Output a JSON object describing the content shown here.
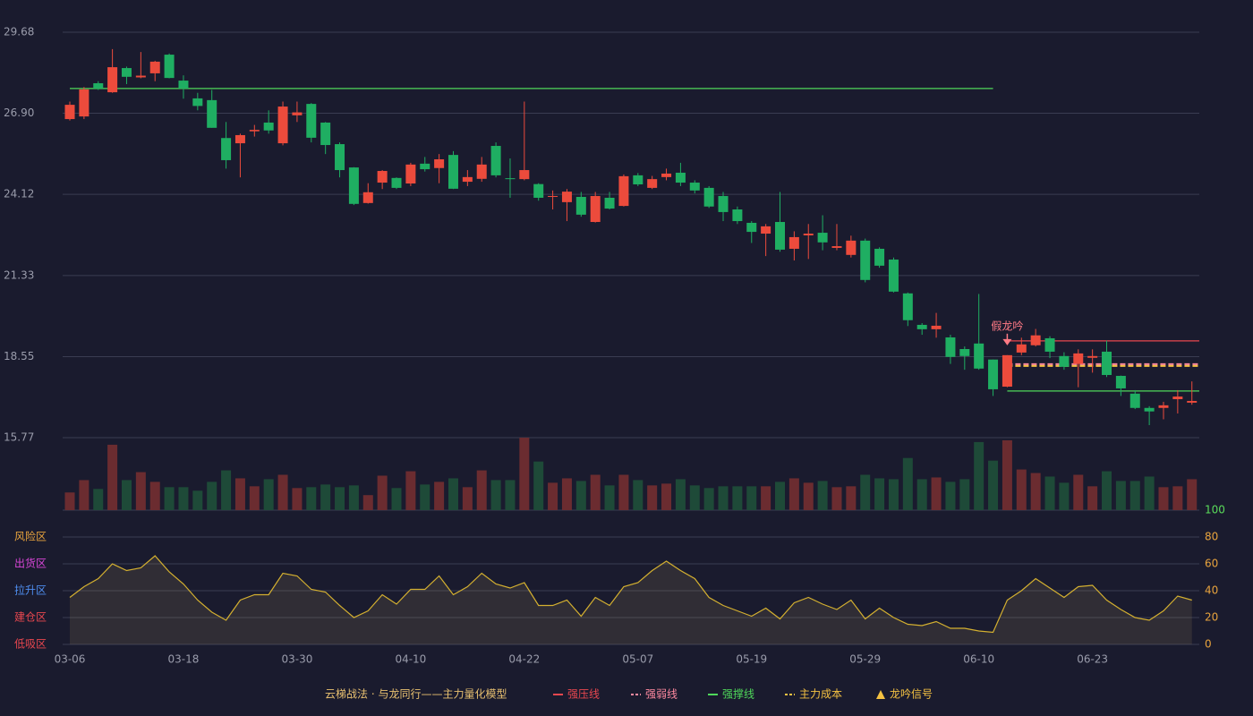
{
  "chart_data": {
    "type": "candlestick",
    "categories": [
      "03-06",
      null,
      null,
      null,
      null,
      null,
      null,
      null,
      "03-18",
      null,
      null,
      null,
      null,
      null,
      null,
      null,
      "03-30",
      null,
      null,
      null,
      null,
      null,
      null,
      null,
      "04-10",
      null,
      null,
      null,
      null,
      null,
      null,
      null,
      "04-22",
      null,
      null,
      null,
      null,
      null,
      null,
      null,
      "05-07",
      null,
      null,
      null,
      null,
      null,
      null,
      null,
      "05-19",
      null,
      null,
      null,
      null,
      null,
      null,
      null,
      "05-29",
      null,
      null,
      null,
      null,
      null,
      null,
      null,
      "06-10",
      null,
      null,
      null,
      null,
      null,
      null,
      null,
      "06-23",
      null,
      null,
      null,
      null,
      null,
      null,
      null
    ],
    "open": [
      26.7,
      26.79,
      27.93,
      27.62,
      28.45,
      28.13,
      28.27,
      28.91,
      28.02,
      27.41,
      27.35,
      26.05,
      25.87,
      26.28,
      26.58,
      25.87,
      26.83,
      27.22,
      26.58,
      25.84,
      25.04,
      23.82,
      24.52,
      24.68,
      24.49,
      25.17,
      25.02,
      25.47,
      24.55,
      24.65,
      25.78,
      24.67,
      24.64,
      24.47,
      24.03,
      23.85,
      24.03,
      23.17,
      24.0,
      23.72,
      24.77,
      24.34,
      24.71,
      24.86,
      24.52,
      24.34,
      24.06,
      23.6,
      23.14,
      22.77,
      23.17,
      22.25,
      22.71,
      22.8,
      22.28,
      22.04,
      22.53,
      22.25,
      21.88,
      20.72,
      19.64,
      19.49,
      19.21,
      18.81,
      19.0,
      18.45,
      17.52,
      18.69,
      18.94,
      19.18,
      18.57,
      18.3,
      18.51,
      18.72,
      17.89,
      17.28,
      16.79,
      16.79,
      17.09,
      16.97
    ],
    "close": [
      27.19,
      27.72,
      27.75,
      28.48,
      28.15,
      28.19,
      28.67,
      28.11,
      27.75,
      27.15,
      26.4,
      25.29,
      26.15,
      26.33,
      26.31,
      27.13,
      26.93,
      26.06,
      25.81,
      24.95,
      23.79,
      24.19,
      24.92,
      24.34,
      25.14,
      24.98,
      25.32,
      24.31,
      24.71,
      25.14,
      24.77,
      24.64,
      24.95,
      24.0,
      24.06,
      24.21,
      23.42,
      24.06,
      23.63,
      24.74,
      24.46,
      24.64,
      24.83,
      24.52,
      24.25,
      23.7,
      23.51,
      23.2,
      22.83,
      23.02,
      22.22,
      22.65,
      22.77,
      22.47,
      22.34,
      22.53,
      21.18,
      21.67,
      20.78,
      19.8,
      19.49,
      19.61,
      18.54,
      18.57,
      18.14,
      17.43,
      18.6,
      18.97,
      19.28,
      18.72,
      18.2,
      18.66,
      18.57,
      17.92,
      17.46,
      16.79,
      16.67,
      16.88,
      17.18,
      17.03
    ],
    "high": [
      27.3,
      27.8,
      28.0,
      29.1,
      28.5,
      29.0,
      28.7,
      28.95,
      28.2,
      27.6,
      27.7,
      26.6,
      26.2,
      26.5,
      27.0,
      27.3,
      27.3,
      27.25,
      26.6,
      25.9,
      25.05,
      24.5,
      24.95,
      24.7,
      25.2,
      25.4,
      25.5,
      25.6,
      24.95,
      25.4,
      25.9,
      25.35,
      27.3,
      24.5,
      24.25,
      24.3,
      24.2,
      24.2,
      24.2,
      24.8,
      24.85,
      24.75,
      25.0,
      25.2,
      24.6,
      24.4,
      24.2,
      23.7,
      23.2,
      23.1,
      24.2,
      22.85,
      23.1,
      23.4,
      23.1,
      22.7,
      22.6,
      22.3,
      21.95,
      20.75,
      19.7,
      20.05,
      19.3,
      18.9,
      20.7,
      18.45,
      18.6,
      19.2,
      19.5,
      19.25,
      18.7,
      18.8,
      18.8,
      19.1,
      17.9,
      17.4,
      16.85,
      17.0,
      17.4,
      17.7
    ],
    "low": [
      26.65,
      26.7,
      27.7,
      27.6,
      27.9,
      28.1,
      28.0,
      28.1,
      27.4,
      27.0,
      26.4,
      25.0,
      24.7,
      26.1,
      26.2,
      25.8,
      26.6,
      25.9,
      25.5,
      24.7,
      23.75,
      23.8,
      24.3,
      24.3,
      24.4,
      24.9,
      24.5,
      24.3,
      24.4,
      24.55,
      24.7,
      24.0,
      24.6,
      23.9,
      23.6,
      23.2,
      23.35,
      23.15,
      23.6,
      23.7,
      24.4,
      24.3,
      24.6,
      24.4,
      24.15,
      23.65,
      23.2,
      23.1,
      22.45,
      22.0,
      22.15,
      21.85,
      21.9,
      22.2,
      22.2,
      21.95,
      21.1,
      21.6,
      20.75,
      19.6,
      19.3,
      19.2,
      18.3,
      18.1,
      18.1,
      17.2,
      17.5,
      18.6,
      18.9,
      18.5,
      18.1,
      17.5,
      18.0,
      17.85,
      17.2,
      16.75,
      16.2,
      16.4,
      16.6,
      16.9
    ],
    "up_color": "#ec4b3c",
    "down_color": "#1fae62",
    "ylim": [
      15.77,
      29.68
    ],
    "yticks": [
      {
        "value": 29.68,
        "label": "29.68"
      },
      {
        "value": 26.9,
        "label": "26.90"
      },
      {
        "value": 24.12,
        "label": "24.12"
      },
      {
        "value": 21.33,
        "label": "21.33"
      },
      {
        "value": 18.55,
        "label": "18.55"
      },
      {
        "value": 15.77,
        "label": "15.77"
      }
    ],
    "grid": true,
    "volume": [
      20,
      34,
      24,
      74,
      34,
      43,
      32,
      26,
      26,
      22,
      32,
      45,
      36,
      27,
      35,
      40,
      25,
      26,
      29,
      26,
      28,
      17,
      39,
      25,
      44,
      29,
      32,
      36,
      26,
      45,
      34,
      34,
      82,
      55,
      31,
      36,
      33,
      40,
      28,
      40,
      34,
      28,
      30,
      35,
      28,
      25,
      27,
      27,
      27,
      27,
      32,
      36,
      31,
      33,
      26,
      27,
      40,
      36,
      35,
      59,
      35,
      37,
      32,
      35,
      77,
      56,
      79,
      46,
      42,
      38,
      31,
      40,
      27,
      44,
      33,
      33,
      38,
      26,
      27,
      35
    ],
    "volume_up_color": "#6b2c30",
    "volume_down_color": "#1e4a38",
    "overlays": [
      {
        "color": "#4fd85a",
        "dash": false,
        "values": [
          27.75,
          27.75,
          27.75,
          27.75,
          27.75,
          27.75,
          27.75,
          27.75,
          27.75,
          27.75,
          27.75,
          27.75,
          27.75,
          27.75,
          27.75,
          27.75,
          27.75,
          27.75,
          27.75,
          27.75,
          27.75,
          27.75,
          27.75,
          27.75,
          27.75,
          27.75,
          27.75,
          27.75,
          27.75,
          27.75,
          27.75,
          27.75,
          27.75,
          27.75,
          27.75,
          27.75,
          27.75,
          27.75,
          27.75,
          27.75,
          27.75,
          27.75,
          27.75,
          27.75,
          27.75,
          27.75,
          27.75,
          27.75,
          27.75,
          27.75,
          27.75,
          27.75,
          27.75,
          27.75,
          27.75,
          27.75,
          27.75,
          27.75,
          27.75,
          27.75,
          27.75,
          27.75,
          27.75,
          27.75,
          27.75,
          27.75,
          null,
          null,
          null,
          null,
          null,
          null,
          null,
          null,
          null,
          null,
          null,
          null,
          null,
          null
        ]
      },
      {
        "name": "强压线",
        "color": "#e8474f",
        "dash": false,
        "values": [
          null,
          null,
          null,
          null,
          null,
          null,
          null,
          null,
          null,
          null,
          null,
          null,
          null,
          null,
          null,
          null,
          null,
          null,
          null,
          null,
          null,
          null,
          null,
          null,
          null,
          null,
          null,
          null,
          null,
          null,
          null,
          null,
          null,
          null,
          null,
          null,
          null,
          null,
          null,
          null,
          null,
          null,
          null,
          null,
          null,
          null,
          null,
          null,
          null,
          null,
          null,
          null,
          null,
          null,
          null,
          null,
          null,
          null,
          null,
          null,
          null,
          null,
          null,
          null,
          null,
          null,
          19.09,
          19.09,
          19.09,
          19.09,
          19.09,
          19.09,
          19.09,
          19.09,
          19.09,
          19.09,
          19.09,
          19.09,
          19.09,
          19.09
        ]
      },
      {
        "name": "强弱线",
        "color": "#ff8aa0",
        "dash": true,
        "values": [
          null,
          null,
          null,
          null,
          null,
          null,
          null,
          null,
          null,
          null,
          null,
          null,
          null,
          null,
          null,
          null,
          null,
          null,
          null,
          null,
          null,
          null,
          null,
          null,
          null,
          null,
          null,
          null,
          null,
          null,
          null,
          null,
          null,
          null,
          null,
          null,
          null,
          null,
          null,
          null,
          null,
          null,
          null,
          null,
          null,
          null,
          null,
          null,
          null,
          null,
          null,
          null,
          null,
          null,
          null,
          null,
          null,
          null,
          null,
          null,
          null,
          null,
          null,
          null,
          null,
          null,
          18.29,
          18.29,
          18.29,
          18.29,
          18.29,
          18.29,
          18.29,
          18.29,
          18.29,
          18.29,
          18.29,
          18.29,
          18.29,
          18.29
        ]
      },
      {
        "name": "强撑线",
        "color": "#4fd85a",
        "dash": false,
        "values": [
          null,
          null,
          null,
          null,
          null,
          null,
          null,
          null,
          null,
          null,
          null,
          null,
          null,
          null,
          null,
          null,
          null,
          null,
          null,
          null,
          null,
          null,
          null,
          null,
          null,
          null,
          null,
          null,
          null,
          null,
          null,
          null,
          null,
          null,
          null,
          null,
          null,
          null,
          null,
          null,
          null,
          null,
          null,
          null,
          null,
          null,
          null,
          null,
          null,
          null,
          null,
          null,
          null,
          null,
          null,
          null,
          null,
          null,
          null,
          null,
          null,
          null,
          null,
          null,
          null,
          null,
          17.37,
          17.37,
          17.37,
          17.37,
          17.37,
          17.37,
          17.37,
          17.37,
          17.37,
          17.37,
          17.37,
          17.37,
          17.37,
          17.37
        ]
      },
      {
        "name": "主力成本",
        "color": "#f5c242",
        "dash": true,
        "values": [
          null,
          null,
          null,
          null,
          null,
          null,
          null,
          null,
          null,
          null,
          null,
          null,
          null,
          null,
          null,
          null,
          null,
          null,
          null,
          null,
          null,
          null,
          null,
          null,
          null,
          null,
          null,
          null,
          null,
          null,
          null,
          null,
          null,
          null,
          null,
          null,
          null,
          null,
          null,
          null,
          null,
          null,
          null,
          null,
          null,
          null,
          null,
          null,
          null,
          null,
          null,
          null,
          null,
          null,
          null,
          null,
          null,
          null,
          null,
          null,
          null,
          null,
          null,
          null,
          null,
          null,
          18.23,
          18.23,
          18.23,
          18.23,
          18.23,
          18.23,
          18.23,
          18.23,
          18.23,
          18.23,
          18.23,
          18.23,
          18.23,
          18.23
        ]
      }
    ],
    "annotation": {
      "text": "假龙吟",
      "index": 66,
      "color": "#ff7a85"
    },
    "oscillator": {
      "values": [
        35,
        43,
        49,
        60,
        55,
        57,
        66,
        54,
        45,
        33,
        24,
        18,
        33,
        37,
        37,
        53,
        51,
        41,
        39,
        29,
        20,
        25,
        37,
        30,
        41,
        41,
        51,
        37,
        43,
        53,
        45,
        42,
        46,
        29,
        29,
        33,
        21,
        35,
        29,
        43,
        46,
        55,
        62,
        55,
        49,
        35,
        29,
        25,
        21,
        27,
        19,
        31,
        35,
        30,
        26,
        33,
        19,
        27,
        20,
        15,
        14,
        17,
        12,
        12,
        10,
        9,
        33,
        40,
        49,
        42,
        35,
        43,
        44,
        33,
        26,
        20,
        18,
        25,
        36,
        33
      ],
      "color": "#d4b030",
      "ylim": [
        0,
        100
      ],
      "yticks": [
        0,
        20,
        40,
        60,
        80,
        100
      ],
      "tick_colors": [
        "#e8a33d",
        "#e8a33d",
        "#e8a33d",
        "#e8a33d",
        "#e8a33d",
        "#5adc5a"
      ],
      "zones": [
        {
          "value": 80,
          "label": "风险区",
          "color": "#e8a33d"
        },
        {
          "value": 60,
          "label": "出货区",
          "color": "#d846d8"
        },
        {
          "value": 40,
          "label": "拉升区",
          "color": "#4f8ef0"
        },
        {
          "value": 20,
          "label": "建仓区",
          "color": "#e8474f"
        },
        {
          "value": 0,
          "label": "低吸区",
          "color": "#e8474f"
        }
      ]
    },
    "legend": {
      "title": "云梯战法 · 与龙同行——主力量化模型",
      "title_color": "#e8c070",
      "signal": {
        "name": "龙吟信号",
        "color": "#f5c242"
      }
    }
  }
}
